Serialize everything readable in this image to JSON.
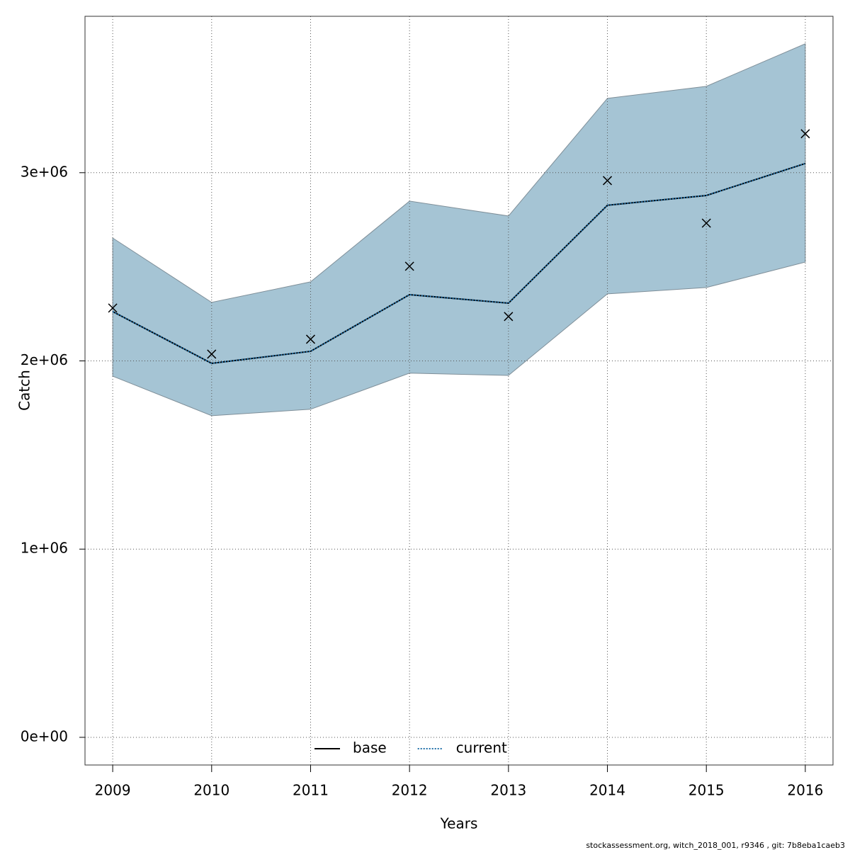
{
  "chart_data": {
    "type": "line",
    "x": [
      2009,
      2010,
      2011,
      2012,
      2013,
      2014,
      2015,
      2016
    ],
    "xlabel": "Years",
    "ylabel": "Catch",
    "band": {
      "color": "#a5c4d4",
      "upper": [
        2653000,
        2311000,
        2420000,
        2849000,
        2770000,
        3395000,
        3459000,
        3685000
      ],
      "lower": [
        1919000,
        1709000,
        1743000,
        1935000,
        1923000,
        2356000,
        2390000,
        2525000
      ]
    },
    "series": [
      {
        "name": "base",
        "color": "#000000",
        "dash": false,
        "values": [
          2262000,
          1987000,
          2051000,
          2352000,
          2307000,
          2827000,
          2879000,
          3049000
        ]
      },
      {
        "name": "current",
        "color": "#1f6fa8",
        "dash": true,
        "values": [
          2262000,
          1987000,
          2051000,
          2352000,
          2307000,
          2827000,
          2879000,
          3049000
        ]
      }
    ],
    "points": {
      "color": "#000000",
      "values": [
        2281000,
        2036000,
        2115000,
        2503000,
        2236000,
        2958000,
        2732000,
        3207000
      ]
    },
    "xlim": [
      2008.72,
      2016.28
    ],
    "xticks": [
      2009,
      2010,
      2011,
      2012,
      2013,
      2014,
      2015,
      2016
    ],
    "ylim": [
      -147000,
      3831000
    ],
    "yticks": [
      {
        "value": 0,
        "label": "0e+00"
      },
      {
        "value": 1000000,
        "label": "1e+06"
      },
      {
        "value": 2000000,
        "label": "2e+06"
      },
      {
        "value": 3000000,
        "label": "3e+06"
      }
    ],
    "grid": true,
    "legend": "bottom",
    "footnote": "stockassessment.org, witch_2018_001, r9346 , git: 7b8eba1caeb3"
  }
}
